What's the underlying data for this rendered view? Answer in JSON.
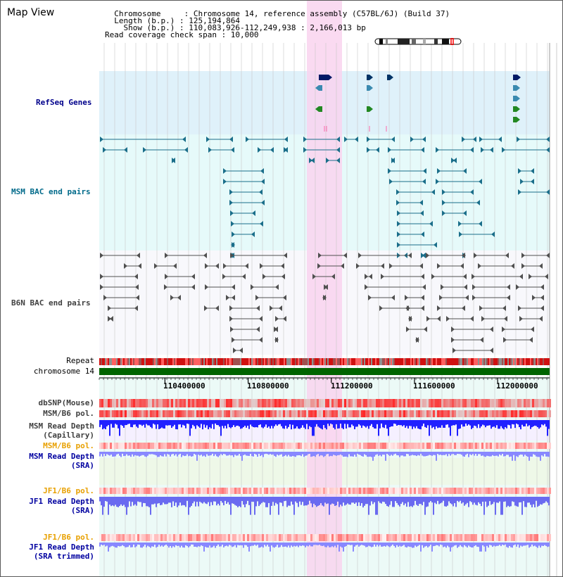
{
  "header": {
    "title": "Map View",
    "lines": [
      "  Chromosome     : Chromosome 14, reference assembly (C57BL/6J) (Build 37)",
      "  Length (b.p.) : 125,194,864",
      "    Show (b.p.) : 110,083,926-112,249,938 : 2,166,013 bp",
      "Read coverage check span : 10,000"
    ]
  },
  "tracks": {
    "refseq": {
      "label": "RefSeq Genes",
      "color": "#00008b"
    },
    "msm_bac": {
      "label": "MSM BAC end pairs",
      "color": "#006a8a"
    },
    "b6n_bac": {
      "label": "B6N BAC end pairs",
      "color": "#404040"
    },
    "repeat": {
      "label": "Repeat"
    },
    "chromosome": {
      "label": "chromosome 14"
    },
    "dbsnp": {
      "label": "dbSNP(Mouse)"
    },
    "msm_b6_pol": {
      "label": "MSM/B6 pol."
    },
    "msm_depth_cap": {
      "label1": "MSM Read Depth",
      "label2": "(Capillary)"
    },
    "msm_b6_pol2": {
      "label": "MSM/B6 pol.",
      "color": "#e8a000"
    },
    "msm_depth_sra": {
      "label1": "MSM Read Depth",
      "label2": "(SRA)"
    },
    "jf1_pol": {
      "label": "JF1/B6 pol.",
      "color": "#e8a000"
    },
    "jf1_depth_sra": {
      "label1": "JF1 Read Depth",
      "label2": "(SRA)"
    },
    "jf1_pol2": {
      "label": "JF1/B6 pol.",
      "color": "#e8a000"
    },
    "jf1_depth_trim": {
      "label1": "JF1 Read Depth",
      "label2": "(SRA trimmed)"
    }
  },
  "axis": {
    "ticks": [
      {
        "value": 110400000,
        "label": "110400000"
      },
      {
        "value": 110800000,
        "label": "110800000"
      },
      {
        "value": 111200000,
        "label": "111200000"
      },
      {
        "value": 111600000,
        "label": "111600000"
      },
      {
        "value": 112000000,
        "label": "112000000"
      }
    ],
    "range": [
      110083926,
      112249938
    ]
  },
  "highlight": {
    "start": 111083926,
    "end": 111250000,
    "color": "#f9d4ef"
  },
  "colors": {
    "refseq_bg": "#dff1fa",
    "msm_bg": "#e6fafa",
    "track_bg": "#ecfaf7",
    "grid": "#c8c8c8",
    "chromosome": "#006400",
    "depth_cap": "#2020ff",
    "depth_sra": "#8888ff",
    "pol_red": "#e83030"
  }
}
